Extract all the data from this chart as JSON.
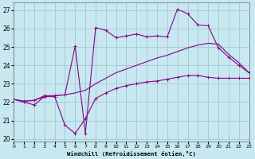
{
  "xlabel": "Windchill (Refroidissement éolien,°C)",
  "xlim": [
    0,
    23
  ],
  "ylim": [
    19.85,
    27.4
  ],
  "yticks": [
    20,
    21,
    22,
    23,
    24,
    25,
    26,
    27
  ],
  "xticks": [
    0,
    1,
    2,
    3,
    4,
    5,
    6,
    7,
    8,
    9,
    10,
    11,
    12,
    13,
    14,
    15,
    16,
    17,
    18,
    19,
    20,
    21,
    22,
    23
  ],
  "bg_color": "#c8e8f0",
  "grid_color": "#a0c8d8",
  "line_color": "#880088",
  "line1_x": [
    0,
    1,
    2,
    3,
    4,
    5,
    6,
    7,
    8,
    9,
    10,
    11,
    12,
    13,
    14,
    15,
    16,
    17,
    18,
    19,
    20,
    21,
    22,
    23
  ],
  "line1_y": [
    22.15,
    22.0,
    21.85,
    22.3,
    22.3,
    20.75,
    20.3,
    21.1,
    22.2,
    22.5,
    22.75,
    22.9,
    23.0,
    23.1,
    23.15,
    23.25,
    23.35,
    23.45,
    23.45,
    23.35,
    23.3,
    23.3,
    23.3,
    23.3
  ],
  "line2_x": [
    0,
    1,
    2,
    3,
    4,
    5,
    6,
    7,
    8,
    9,
    10,
    11,
    12,
    13,
    14,
    15,
    16,
    17,
    18,
    19,
    20,
    21,
    22,
    23
  ],
  "line2_y": [
    22.15,
    22.05,
    22.1,
    22.3,
    22.35,
    22.4,
    22.5,
    22.65,
    23.0,
    23.3,
    23.6,
    23.8,
    24.0,
    24.2,
    24.4,
    24.55,
    24.75,
    24.95,
    25.1,
    25.2,
    25.15,
    24.6,
    24.15,
    23.6
  ],
  "line3_x": [
    0,
    1,
    2,
    3,
    4,
    5,
    6,
    7,
    8,
    9,
    10,
    11,
    12,
    13,
    14,
    15,
    16,
    17,
    18,
    19,
    20,
    21,
    22,
    23
  ],
  "line3_y": [
    22.15,
    22.05,
    22.1,
    22.35,
    22.35,
    22.4,
    25.05,
    20.3,
    26.05,
    25.9,
    25.5,
    25.6,
    25.7,
    25.55,
    25.6,
    25.55,
    27.05,
    26.8,
    26.2,
    26.15,
    24.95,
    24.45,
    24.0,
    23.6
  ]
}
